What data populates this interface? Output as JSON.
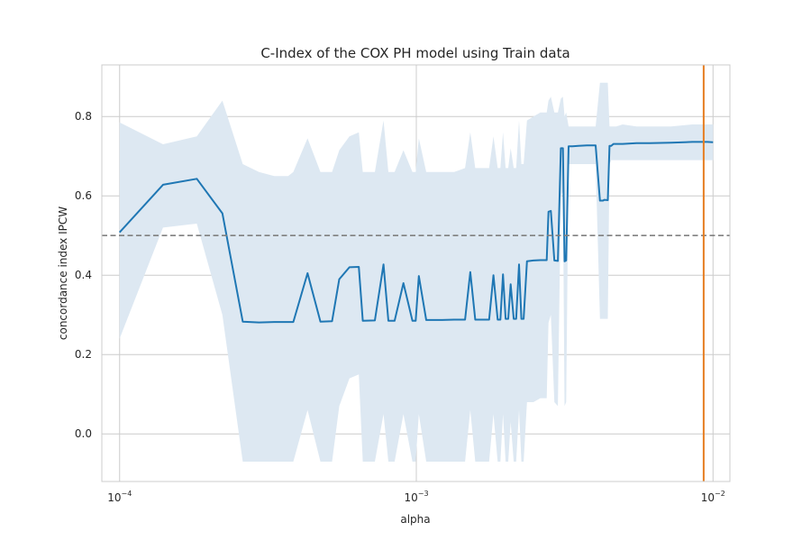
{
  "chart_data": {
    "type": "line",
    "title": "C-Index of the COX PH model using Train data",
    "xlabel": "alpha",
    "ylabel": "concordance index IPCW",
    "xscale": "log",
    "xlim": [
      8.71e-05,
      0.0114
    ],
    "ylim": [
      -0.12,
      0.93
    ],
    "grid": true,
    "x_ticks": [
      {
        "value": 0.0001,
        "base": "10",
        "exp": "−4"
      },
      {
        "value": 0.001,
        "base": "10",
        "exp": "−3"
      },
      {
        "value": 0.01,
        "base": "10",
        "exp": "−2"
      }
    ],
    "y_ticks": [
      {
        "value": 0.0,
        "label": "0.0"
      },
      {
        "value": 0.2,
        "label": "0.2"
      },
      {
        "value": 0.4,
        "label": "0.4"
      },
      {
        "value": 0.6,
        "label": "0.6"
      },
      {
        "value": 0.8,
        "label": "0.8"
      }
    ],
    "reference_line": {
      "y": 0.5,
      "style": "dashed",
      "color": "#808080"
    },
    "vertical_line": {
      "x": 0.0093,
      "color": "#e67e22"
    },
    "colors": {
      "line": "#1f77b4",
      "band": "#dde8f2"
    },
    "series": [
      {
        "x": [
          0.0001,
          0.00014,
          0.000182,
          0.000222,
          0.00026,
          0.000295,
          0.000332,
          0.00037,
          0.000385,
          0.00043,
          0.000475,
          0.00052,
          0.00055,
          0.000595,
          0.00064,
          0.00066,
          0.000725,
          0.000775,
          0.000805,
          0.000845,
          0.000905,
          0.00097,
          0.000995,
          0.00102,
          0.00108,
          0.00112,
          0.00122,
          0.00134,
          0.00146,
          0.00152,
          0.00158,
          0.00166,
          0.00176,
          0.00182,
          0.00188,
          0.00192,
          0.00196,
          0.002,
          0.00204,
          0.00208,
          0.00213,
          0.00217,
          0.00222,
          0.00226,
          0.0023,
          0.00236,
          0.00248,
          0.00262,
          0.00275,
          0.00279,
          0.00284,
          0.00292,
          0.003,
          0.00307,
          0.00312,
          0.00316,
          0.0032,
          0.00326,
          0.00336,
          0.00352,
          0.00376,
          0.00402,
          0.00416,
          0.00426,
          0.0043,
          0.00442,
          0.00448,
          0.00454,
          0.00462,
          0.00472,
          0.00496,
          0.00552,
          0.00612,
          0.00722,
          0.00852,
          0.00957,
          0.01
        ],
        "y": [
          0.508,
          0.628,
          0.643,
          0.556,
          0.283,
          0.281,
          0.282,
          0.282,
          0.282,
          0.405,
          0.283,
          0.284,
          0.39,
          0.42,
          0.421,
          0.285,
          0.286,
          0.427,
          0.285,
          0.285,
          0.38,
          0.285,
          0.285,
          0.398,
          0.287,
          0.287,
          0.287,
          0.288,
          0.288,
          0.408,
          0.288,
          0.288,
          0.288,
          0.4,
          0.288,
          0.288,
          0.402,
          0.29,
          0.29,
          0.377,
          0.29,
          0.29,
          0.427,
          0.29,
          0.29,
          0.435,
          0.437,
          0.438,
          0.438,
          0.56,
          0.562,
          0.437,
          0.436,
          0.72,
          0.72,
          0.435,
          0.437,
          0.725,
          0.725,
          0.726,
          0.727,
          0.727,
          0.588,
          0.588,
          0.59,
          0.589,
          0.726,
          0.726,
          0.731,
          0.731,
          0.731,
          0.733,
          0.733,
          0.734,
          0.736,
          0.736,
          0.735
        ],
        "lower": [
          0.24,
          0.52,
          0.53,
          0.3,
          -0.07,
          -0.07,
          -0.07,
          -0.07,
          -0.07,
          0.06,
          -0.07,
          -0.07,
          0.07,
          0.14,
          0.15,
          -0.07,
          -0.07,
          0.05,
          -0.07,
          -0.07,
          0.05,
          -0.07,
          -0.07,
          0.05,
          -0.07,
          -0.07,
          -0.07,
          -0.07,
          -0.07,
          0.06,
          -0.07,
          -0.07,
          -0.07,
          0.05,
          -0.07,
          -0.07,
          0.05,
          -0.07,
          -0.07,
          0.03,
          -0.07,
          -0.07,
          0.06,
          -0.07,
          -0.07,
          0.08,
          0.08,
          0.09,
          0.09,
          0.28,
          0.3,
          0.08,
          0.07,
          0.6,
          0.61,
          0.07,
          0.08,
          0.68,
          0.68,
          0.68,
          0.68,
          0.68,
          0.29,
          0.29,
          0.29,
          0.29,
          0.68,
          0.69,
          0.69,
          0.69,
          0.69,
          0.69,
          0.69,
          0.69,
          0.69,
          0.69,
          0.69
        ],
        "upper": [
          0.785,
          0.73,
          0.75,
          0.84,
          0.68,
          0.66,
          0.65,
          0.65,
          0.66,
          0.745,
          0.66,
          0.66,
          0.715,
          0.75,
          0.76,
          0.66,
          0.66,
          0.79,
          0.66,
          0.66,
          0.715,
          0.66,
          0.66,
          0.745,
          0.66,
          0.66,
          0.66,
          0.66,
          0.67,
          0.76,
          0.67,
          0.67,
          0.67,
          0.75,
          0.67,
          0.67,
          0.76,
          0.67,
          0.67,
          0.72,
          0.67,
          0.67,
          0.79,
          0.68,
          0.68,
          0.79,
          0.8,
          0.81,
          0.81,
          0.84,
          0.85,
          0.81,
          0.81,
          0.845,
          0.85,
          0.8,
          0.81,
          0.775,
          0.775,
          0.775,
          0.775,
          0.775,
          0.885,
          0.885,
          0.885,
          0.885,
          0.775,
          0.775,
          0.775,
          0.775,
          0.78,
          0.775,
          0.775,
          0.775,
          0.78,
          0.78,
          0.78
        ]
      }
    ]
  }
}
